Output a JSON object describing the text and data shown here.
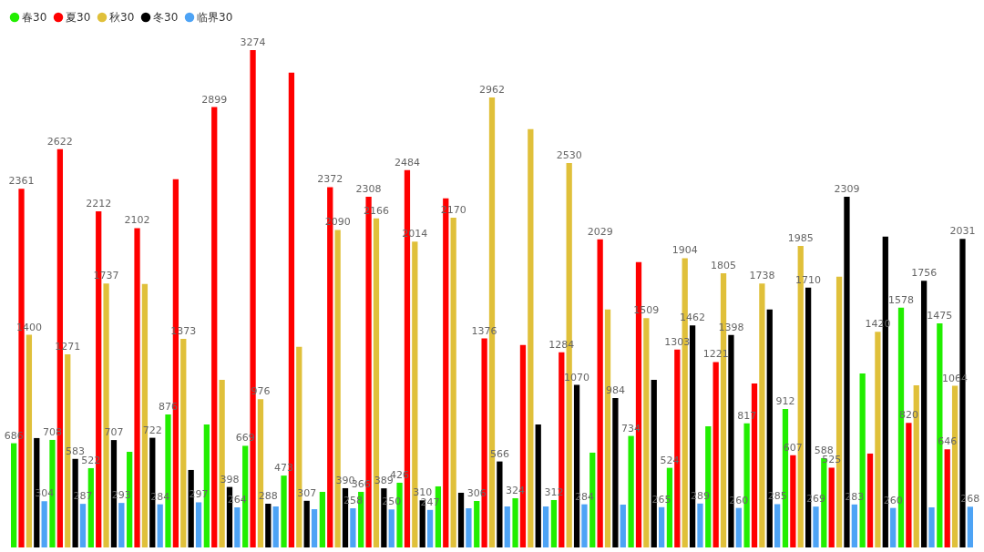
{
  "chart_data": {
    "type": "bar",
    "categories": [
      null,
      null,
      null,
      null,
      null,
      null,
      null,
      null,
      null,
      null,
      null,
      null,
      null,
      null,
      null,
      null,
      null,
      null,
      null,
      null,
      null,
      null,
      null,
      null,
      null
    ],
    "series": [
      {
        "name": "春30",
        "color": "#22ee00",
        "values": [
          686,
          708,
          522,
          630,
          876,
          810,
          669,
          473,
          366,
          366,
          426,
          402,
          306,
          324,
          312,
          624,
          734,
          524,
          798,
          817,
          912,
          588,
          1146,
          1578,
          1475
        ],
        "value_labels": [
          "686",
          "708",
          "522",
          null,
          "876",
          null,
          "669",
          "473",
          null,
          "366",
          "426",
          null,
          "306",
          "324",
          "312",
          null,
          "734",
          "524",
          null,
          "817",
          "912",
          "588",
          null,
          "1578",
          "1475"
        ]
      },
      {
        "name": "夏30",
        "color": "#ff0000",
        "values": [
          2361,
          2622,
          2212,
          2102,
          2424,
          2899,
          3274,
          3126,
          2372,
          2308,
          2484,
          2298,
          1376,
          1332,
          1284,
          2029,
          1878,
          1303,
          1221,
          1080,
          607,
          525,
          618,
          820,
          646
        ],
        "value_labels": [
          "2361",
          "2622",
          "2212",
          "2102",
          null,
          "2899",
          "3274",
          null,
          "2372",
          "2308",
          "2484",
          null,
          "1376",
          null,
          "1284",
          "2029",
          null,
          "1303",
          "1221",
          null,
          "607",
          "525",
          null,
          "820",
          "646"
        ]
      },
      {
        "name": "秋30",
        "color": "#e0c03a",
        "values": [
          1400,
          1271,
          1737,
          1734,
          1373,
          1104,
          976,
          1320,
          2090,
          2166,
          2014,
          2170,
          2962,
          2754,
          2530,
          1566,
          1509,
          1904,
          1805,
          1738,
          1985,
          1782,
          1420,
          1068,
          1064
        ],
        "value_labels": [
          "1400",
          "1271",
          "1737",
          null,
          "1373",
          null,
          "976",
          null,
          "2090",
          "2166",
          "2014",
          "2170",
          "2962",
          null,
          "2530",
          null,
          "1509",
          "1904",
          "1805",
          "1738",
          "1985",
          null,
          "1420",
          null,
          "1064"
        ]
      },
      {
        "name": "冬30",
        "color": "#000000",
        "values": [
          720,
          583,
          707,
          722,
          510,
          398,
          288,
          307,
          390,
          389,
          310,
          360,
          566,
          810,
          1070,
          984,
          1104,
          1462,
          1398,
          1566,
          1710,
          2309,
          2046,
          1756,
          2031
        ],
        "value_labels": [
          null,
          "583",
          "707",
          "722",
          null,
          "398",
          "288",
          "307",
          "390",
          "389",
          "310",
          null,
          "566",
          null,
          "1070",
          "984",
          null,
          "1462",
          "1398",
          null,
          "1710",
          "2309",
          null,
          "1756",
          "2031"
        ]
      },
      {
        "name": "临界30",
        "color": "#4da3f5",
        "values": [
          304,
          287,
          293,
          284,
          297,
          264,
          270,
          252,
          258,
          250,
          247,
          258,
          270,
          270,
          284,
          282,
          265,
          289,
          260,
          285,
          269,
          283,
          260,
          264,
          268
        ],
        "value_labels": [
          "304",
          "287",
          "293",
          "284",
          "297",
          "264",
          null,
          null,
          "258",
          "250",
          "247",
          null,
          null,
          null,
          "284",
          null,
          "265",
          "289",
          "260",
          "285",
          "269",
          "283",
          "260",
          null,
          "268"
        ]
      }
    ],
    "legend": "top left",
    "tick_labels": false
  }
}
